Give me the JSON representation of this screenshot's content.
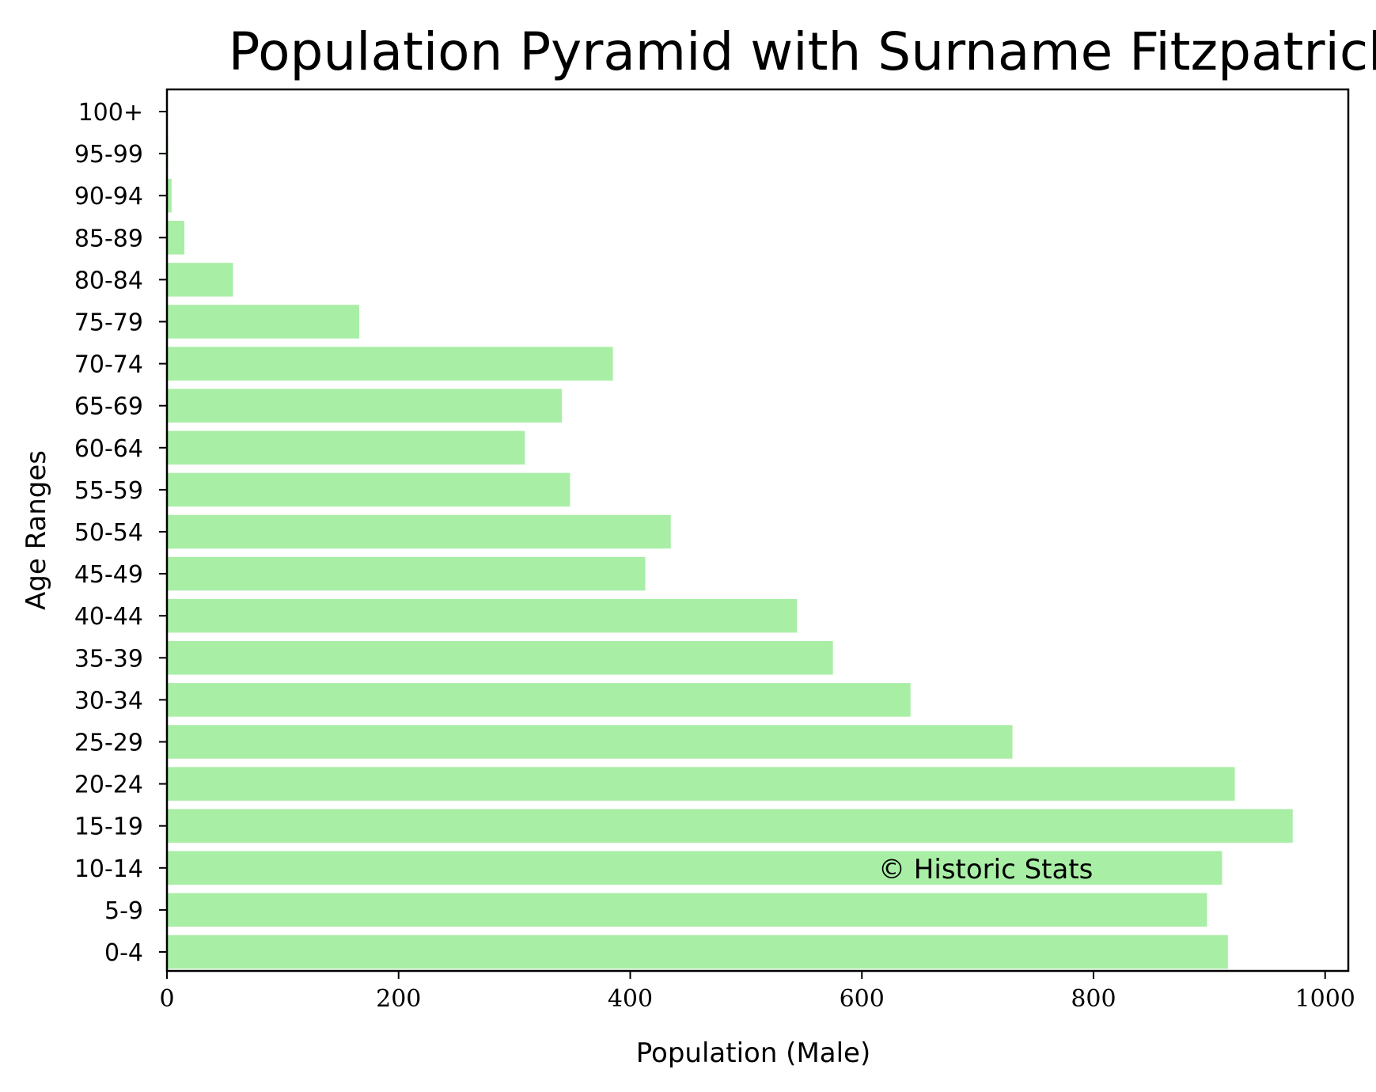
{
  "chart_data": {
    "type": "bar",
    "orientation": "horizontal",
    "title": "Population Pyramid with Surname Fitzpatrick",
    "xlabel": "Population (Male)",
    "ylabel": "Age Ranges",
    "categories": [
      "0-4",
      "5-9",
      "10-14",
      "15-19",
      "20-24",
      "25-29",
      "30-34",
      "35-39",
      "40-44",
      "45-49",
      "50-54",
      "55-59",
      "60-64",
      "65-69",
      "70-74",
      "75-79",
      "80-84",
      "85-89",
      "90-94",
      "95-99",
      "100+"
    ],
    "values": [
      916,
      898,
      911,
      972,
      922,
      730,
      642,
      575,
      544,
      413,
      435,
      348,
      309,
      341,
      385,
      166,
      57,
      15,
      4,
      1,
      0
    ],
    "xlim": [
      0,
      1020
    ],
    "xticks": [
      0,
      200,
      400,
      600,
      800,
      1000
    ],
    "grid": false,
    "bar_color": "#a8eea5",
    "annotation": "© Historic Stats"
  }
}
